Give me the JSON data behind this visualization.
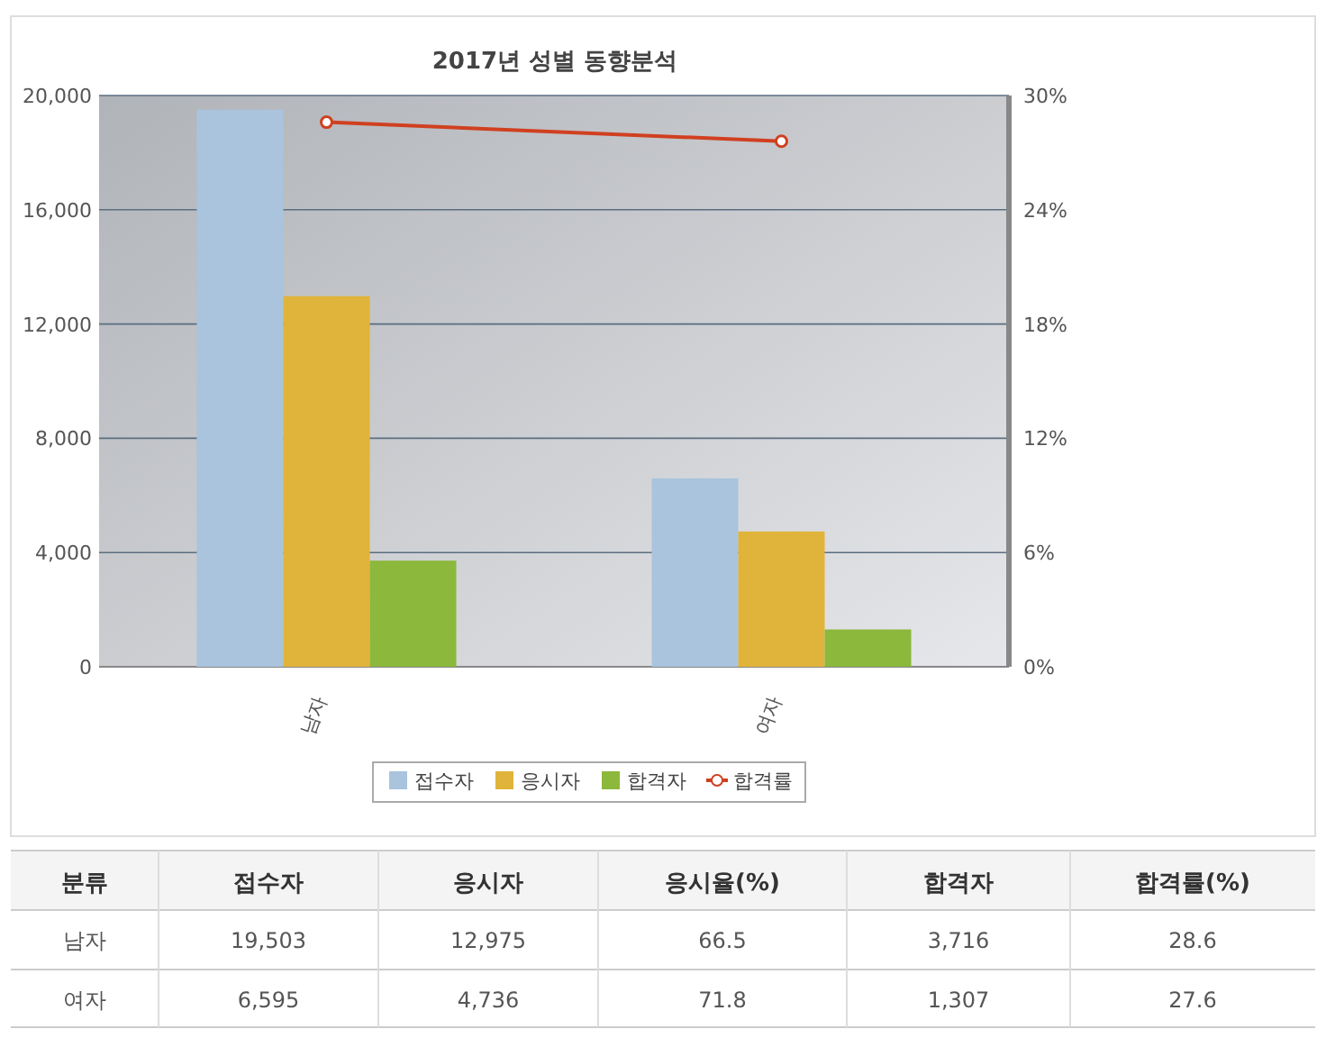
{
  "chart_data": [
    {
      "type": "bar",
      "title": "2017년 성별 동향분석",
      "categories": [
        "남자",
        "여자"
      ],
      "series": [
        {
          "name": "접수자",
          "color": "#a9c4dc",
          "values": [
            19503,
            6595
          ]
        },
        {
          "name": "응시자",
          "color": "#e0b43a",
          "values": [
            12975,
            4736
          ]
        },
        {
          "name": "합격자",
          "color": "#8cb83c",
          "values": [
            3716,
            1307
          ]
        },
        {
          "name": "합격률",
          "type": "line",
          "axis": "y2",
          "color": "#d04020",
          "values": [
            28.6,
            27.6
          ],
          "marker": "circle"
        }
      ],
      "ylim": [
        0,
        20000
      ],
      "yticks": [
        0,
        {
          "value": 4000,
          "label": "4,000"
        },
        {
          "value": 8000,
          "label": "8,000"
        },
        {
          "value": 12000,
          "label": "12,000"
        },
        {
          "value": 16000,
          "label": "16,000"
        },
        {
          "value": 20000,
          "label": "20,000"
        }
      ],
      "y2lim": [
        0,
        30
      ],
      "y2ticks": [
        {
          "value": 0,
          "label": "0%"
        },
        {
          "value": 6,
          "label": "6%"
        },
        {
          "value": 12,
          "label": "12%"
        },
        {
          "value": 18,
          "label": "18%"
        },
        {
          "value": 24,
          "label": "24%"
        },
        {
          "value": 30,
          "label": "30%"
        }
      ],
      "grid": "y",
      "legend": "bottom"
    },
    {
      "type": "other",
      "categories": [
        "분류",
        "접수자",
        "응시자",
        "응시율(%)",
        "합격자",
        "합격률(%)"
      ],
      "annotations": [
        "남자",
        "19,503",
        "12,975",
        "66.5",
        "3,716",
        "28.6",
        "여자",
        "6,595",
        "4,736",
        "71.8",
        "1,307",
        "27.6"
      ]
    }
  ]
}
